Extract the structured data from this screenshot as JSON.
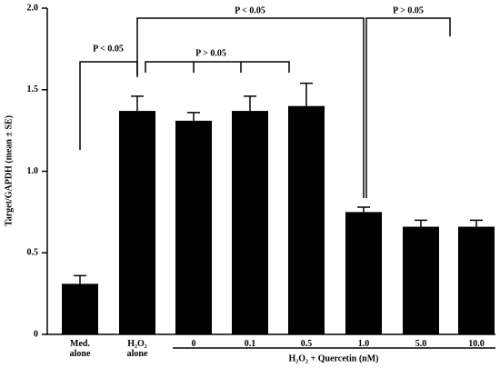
{
  "chart_data": {
    "type": "bar",
    "y_label": "Target/GAPDH (mean ± SE)",
    "categories": [
      "Med. alone",
      "H₂O₂ alone",
      "0",
      "0.1",
      "0.5",
      "1.0",
      "5.0",
      "10.0"
    ],
    "group_label": "H₂O₂ + Quercetin (nM)",
    "values": [
      0.31,
      1.37,
      1.31,
      1.37,
      1.4,
      0.75,
      0.66,
      0.66
    ],
    "errors": [
      0.05,
      0.09,
      0.05,
      0.09,
      0.14,
      0.03,
      0.04,
      0.04
    ],
    "color": "#000000",
    "ylim": [
      0,
      2
    ],
    "yticks": [
      0,
      0.5,
      {
        "value": 1,
        "label": "1.0"
      },
      1.5,
      {
        "value": 2,
        "label": "2.0"
      }
    ],
    "annotations": [
      "P < 0.05",
      "P < 0.05",
      "P > 0.05",
      "P > 0.05"
    ]
  }
}
